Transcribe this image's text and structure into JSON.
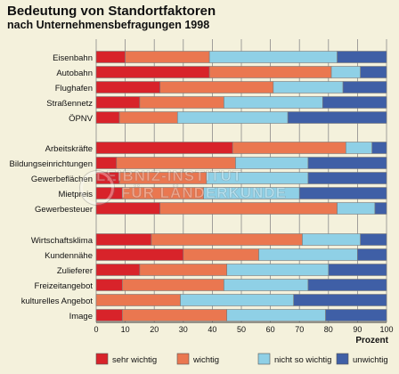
{
  "title": "Bedeutung von Standortfaktoren",
  "subtitle": "nach Unternehmensbefragungen 1998",
  "watermark": [
    "LEIBNIZ-INSTITUT",
    "FÜR LÄNDERKUNDE"
  ],
  "colors": {
    "sehr_wichtig": "#d8232a",
    "wichtig": "#ea7750",
    "nicht_so_wichtig": "#8fd0e6",
    "unwichtig": "#3f5fa6",
    "background": "#f4f1dc"
  },
  "chart_data": {
    "type": "bar",
    "orientation": "horizontal",
    "stacked": true,
    "title": "Bedeutung von Standortfaktoren",
    "subtitle": "nach Unternehmensbefragungen 1998",
    "xlabel": "Prozent",
    "xlim": [
      0,
      100
    ],
    "xticks": [
      0,
      10,
      20,
      30,
      40,
      50,
      60,
      70,
      80,
      90,
      100
    ],
    "grid": true,
    "legend_position": "bottom",
    "groups": [
      [
        "Eisenbahn",
        "Autobahn",
        "Flughafen",
        "Straßennetz",
        "ÖPNV"
      ],
      [
        "Arbeitskräfte",
        "Bildungseinrichtungen",
        "Gewerbeflächen",
        "Mietpreis",
        "Gewerbesteuer"
      ],
      [
        "Wirtschaftsklima",
        "Kundennähe",
        "Zulieferer",
        "Freizeitangebot",
        "kulturelles Angebot",
        "Image"
      ]
    ],
    "categories": [
      "Eisenbahn",
      "Autobahn",
      "Flughafen",
      "Straßennetz",
      "ÖPNV",
      "Arbeitskräfte",
      "Bildungseinrichtungen",
      "Gewerbeflächen",
      "Mietpreis",
      "Gewerbesteuer",
      "Wirtschaftsklima",
      "Kundennähe",
      "Zulieferer",
      "Freizeitangebot",
      "kulturelles Angebot",
      "Image"
    ],
    "series": [
      {
        "name": "sehr wichtig",
        "color": "#d8232a",
        "values": [
          10,
          39,
          22,
          15,
          8,
          47,
          7,
          8,
          9,
          22,
          19,
          30,
          15,
          9,
          0,
          9
        ]
      },
      {
        "name": "wichtig",
        "color": "#ea7750",
        "values": [
          29,
          42,
          39,
          29,
          20,
          39,
          41,
          30,
          28,
          61,
          52,
          26,
          30,
          35,
          29,
          36
        ]
      },
      {
        "name": "nicht so wichtig",
        "color": "#8fd0e6",
        "values": [
          44,
          10,
          24,
          34,
          38,
          9,
          25,
          35,
          33,
          13,
          20,
          34,
          35,
          29,
          39,
          34
        ]
      },
      {
        "name": "unwichtig",
        "color": "#3f5fa6",
        "values": [
          17,
          9,
          15,
          22,
          34,
          5,
          27,
          27,
          30,
          4,
          9,
          10,
          20,
          27,
          32,
          21
        ]
      }
    ]
  }
}
